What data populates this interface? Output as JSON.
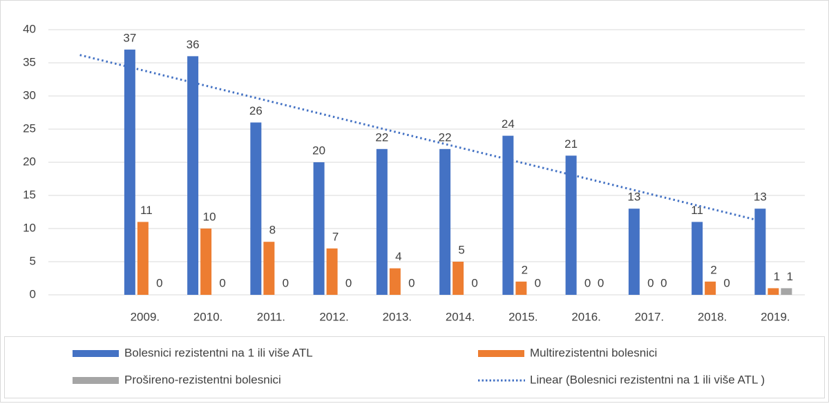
{
  "chart_data": {
    "type": "bar",
    "categories": [
      null,
      "2009.",
      "2010.",
      "2011.",
      "2012.",
      "2013.",
      "2014.",
      "2015.",
      "2016.",
      "2017.",
      "2018.",
      "2019."
    ],
    "series": [
      {
        "name": "Bolesnici rezistentni na 1 ili više ATL",
        "color": "#4472c4",
        "values": [
          null,
          37,
          36,
          26,
          20,
          22,
          22,
          24,
          21,
          13,
          11,
          13
        ]
      },
      {
        "name": "Multirezistentni bolesnici",
        "color": "#ed7d31",
        "values": [
          null,
          11,
          10,
          8,
          7,
          4,
          5,
          2,
          0,
          0,
          2,
          1
        ]
      },
      {
        "name": "Prošireno-rezistentni bolesnici",
        "color": "#a5a5a5",
        "values": [
          null,
          0,
          0,
          0,
          0,
          0,
          0,
          0,
          0,
          0,
          0,
          1
        ]
      }
    ],
    "trendline": {
      "name": "Linear (Bolesnici rezistentni na 1 ili više ATL )",
      "series": 0,
      "color": "#4472c4"
    },
    "ylim": [
      0,
      40
    ],
    "yticks": [
      0,
      5,
      10,
      15,
      20,
      25,
      30,
      35,
      40
    ],
    "grid": true
  }
}
